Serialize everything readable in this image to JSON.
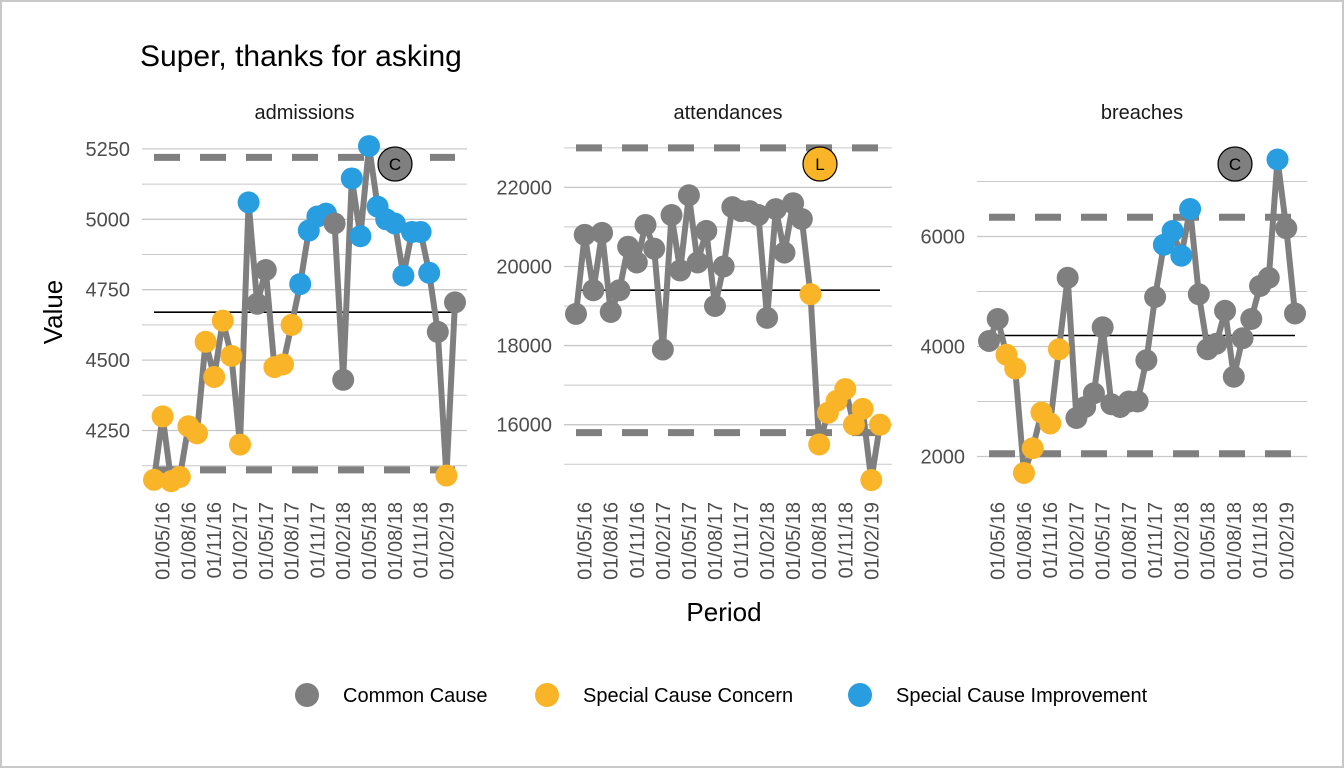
{
  "chart_data": {
    "type": "line",
    "title": "Super, thanks for asking",
    "xlabel": "Period",
    "ylabel": "Value",
    "colors": {
      "common": "#7f7f7f",
      "concern": "#fab428",
      "improvement": "#289de0",
      "line": "#7f7f7f",
      "mean": "#000000",
      "limits": "#7f7f7f",
      "grid": "#c8c8c8"
    },
    "legend": {
      "position": "bottom",
      "items": [
        {
          "key": "common",
          "label": "Common Cause"
        },
        {
          "key": "concern",
          "label": "Special Cause Concern"
        },
        {
          "key": "improvement",
          "label": "Special Cause Improvement"
        }
      ]
    },
    "x_tick_labels": [
      "01/05/16",
      "01/08/16",
      "01/11/16",
      "01/02/17",
      "01/05/17",
      "01/08/17",
      "01/11/17",
      "01/02/18",
      "01/05/18",
      "01/08/18",
      "01/11/18",
      "01/02/19"
    ],
    "period_start": "01/04/16",
    "period_months": 35,
    "facets": [
      {
        "name": "admissions",
        "ylim": [
          4060,
          5310
        ],
        "yticks": [
          4250,
          4500,
          4750,
          5000,
          5250
        ],
        "mean": 4670,
        "lower_limit": 4110,
        "upper_limit": 5220,
        "badge": "C",
        "badge_color": "#7f7f7f",
        "values": [
          4075,
          4300,
          4070,
          4085,
          4265,
          4240,
          4565,
          4440,
          4640,
          4515,
          4200,
          5060,
          4700,
          4820,
          4475,
          4485,
          4625,
          4770,
          4960,
          5010,
          5020,
          4985,
          4430,
          5145,
          4940,
          5260,
          5045,
          5000,
          4985,
          4800,
          4955,
          4955,
          4810,
          4600,
          4090,
          4705
        ],
        "status": [
          "concern",
          "concern",
          "concern",
          "concern",
          "concern",
          "concern",
          "concern",
          "concern",
          "concern",
          "concern",
          "concern",
          "improvement",
          "common",
          "common",
          "concern",
          "concern",
          "concern",
          "improvement",
          "improvement",
          "improvement",
          "improvement",
          "common",
          "common",
          "improvement",
          "improvement",
          "improvement",
          "improvement",
          "improvement",
          "improvement",
          "improvement",
          "improvement",
          "improvement",
          "improvement",
          "common",
          "concern",
          "common"
        ]
      },
      {
        "name": "attendances",
        "ylim": [
          14500,
          23400
        ],
        "yticks": [
          16000,
          18000,
          20000,
          22000
        ],
        "mean": 19400,
        "lower_limit": 15800,
        "upper_limit": 23000,
        "badge": "L",
        "badge_color": "#fab428",
        "values": [
          18800,
          20800,
          19400,
          20850,
          18850,
          19400,
          20500,
          20100,
          21050,
          20450,
          17900,
          21300,
          19900,
          21800,
          20100,
          20900,
          19000,
          20000,
          21500,
          21400,
          21400,
          21300,
          18700,
          21450,
          20350,
          21600,
          21200,
          19300,
          15500,
          16300,
          16600,
          16900,
          16000,
          16400,
          14600,
          16000
        ],
        "status": [
          "common",
          "common",
          "common",
          "common",
          "common",
          "common",
          "common",
          "common",
          "common",
          "common",
          "common",
          "common",
          "common",
          "common",
          "common",
          "common",
          "common",
          "common",
          "common",
          "common",
          "common",
          "common",
          "common",
          "common",
          "common",
          "common",
          "common",
          "concern",
          "concern",
          "concern",
          "concern",
          "concern",
          "concern",
          "concern",
          "concern",
          "concern"
        ]
      },
      {
        "name": "breaches",
        "ylim": [
          1500,
          7900
        ],
        "yticks": [
          2000,
          4000,
          6000
        ],
        "mean": 4200,
        "lower_limit": 2050,
        "upper_limit": 6350,
        "badge": "C",
        "badge_color": "#7f7f7f",
        "values": [
          4100,
          4500,
          3850,
          3600,
          1700,
          2150,
          2800,
          2600,
          3950,
          5250,
          2700,
          2900,
          3150,
          4350,
          2950,
          2900,
          3000,
          3000,
          3750,
          4900,
          5850,
          6100,
          5650,
          6500,
          4950,
          3950,
          4050,
          4650,
          3450,
          4150,
          4500,
          5100,
          5250,
          7400,
          6150,
          4600
        ],
        "status": [
          "common",
          "common",
          "concern",
          "concern",
          "concern",
          "concern",
          "concern",
          "concern",
          "concern",
          "common",
          "common",
          "common",
          "common",
          "common",
          "common",
          "common",
          "common",
          "common",
          "common",
          "common",
          "improvement",
          "improvement",
          "improvement",
          "improvement",
          "common",
          "common",
          "common",
          "common",
          "common",
          "common",
          "common",
          "common",
          "common",
          "improvement",
          "common",
          "common"
        ]
      }
    ]
  }
}
